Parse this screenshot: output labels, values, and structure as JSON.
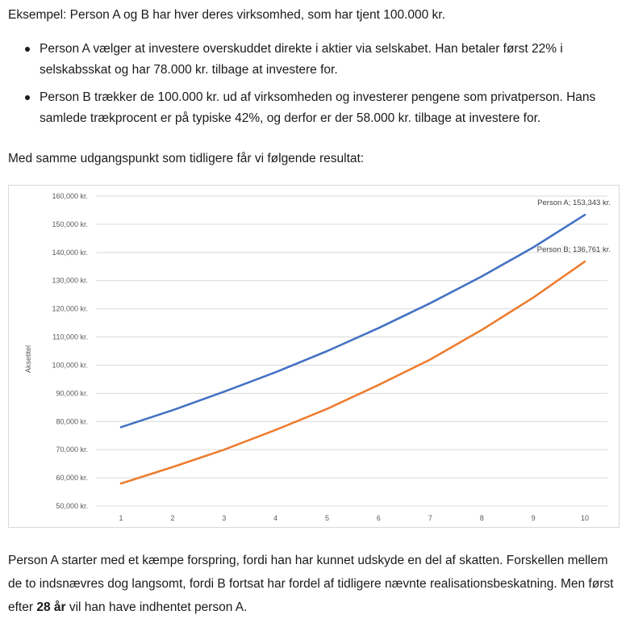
{
  "intro": "Eksempel: Person A og B har hver deres virksomhed, som har tjent 100.000 kr.",
  "bullets": [
    "Person A vælger at investere overskuddet direkte i aktier via selskabet. Han betaler først 22% i selskabsskat og har 78.000 kr. tilbage at investere for.",
    "Person B trækker de 100.000 kr. ud af virksomheden og investerer pengene som privatperson. Hans samlede trækprocent er på typiske 42%, og derfor er der 58.000 kr. tilbage at investere for."
  ],
  "lead": "Med samme udgangspunkt som tidligere får vi følgende resultat:",
  "outro": {
    "before": "Person A starter med et kæmpe forspring, fordi han har kunnet udskyde en del af skatten. Forskellen mellem de to indsnævres dog langsomt, fordi B fortsat har fordel af tidligere nævnte realisationsbeskatning. Men først efter ",
    "bold": "28 år",
    "after": " vil han have indhentet person A."
  },
  "chart_data": {
    "type": "line",
    "title": "",
    "xlabel": "",
    "ylabel": "Aksetitel",
    "x": [
      1,
      2,
      3,
      4,
      5,
      6,
      7,
      8,
      9,
      10
    ],
    "ylim": [
      50000,
      160000
    ],
    "yticks": [
      50000,
      60000,
      70000,
      80000,
      90000,
      100000,
      110000,
      120000,
      130000,
      140000,
      150000,
      160000
    ],
    "ytick_labels": [
      "50,000 kr.",
      "60,000 kr.",
      "70,000 kr.",
      "80,000 kr.",
      "90,000 kr.",
      "100,000 kr.",
      "110,000 kr.",
      "120,000 kr.",
      "130,000 kr.",
      "140,000 kr.",
      "150,000 kr.",
      "160,000 kr."
    ],
    "xtick_labels": [
      "1",
      "2",
      "3",
      "4",
      "5",
      "6",
      "7",
      "8",
      "9",
      "10"
    ],
    "grid": true,
    "series": [
      {
        "name": "Person A",
        "color": "#4472c4",
        "values": [
          78000,
          84000,
          90600,
          97500,
          105000,
          113200,
          122000,
          131500,
          141800,
          153343
        ],
        "end_label": "Person A; 153,343 kr."
      },
      {
        "name": "Person B",
        "color": "#ed7d31",
        "values": [
          58000,
          63800,
          70000,
          77000,
          84500,
          93000,
          102000,
          112500,
          124000,
          136761
        ],
        "end_label": "Person B; 136,761 kr."
      }
    ]
  }
}
